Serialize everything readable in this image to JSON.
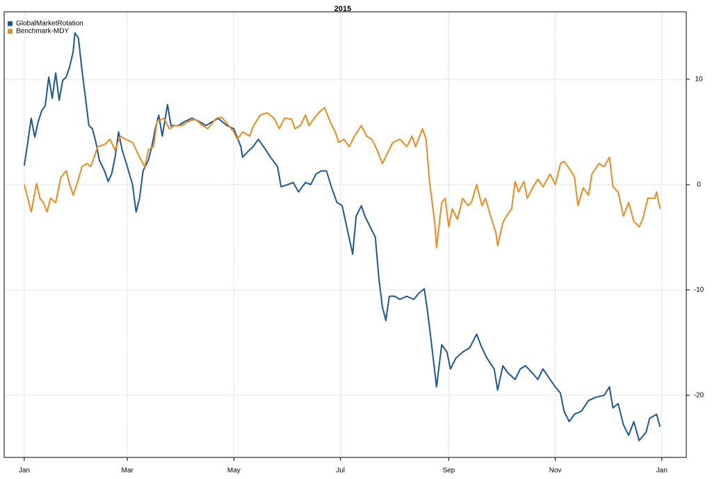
{
  "chart_data": {
    "type": "line",
    "title": "2015",
    "xlim": [
      -11.5,
      379
    ],
    "ylim": [
      -25.9,
      16.4
    ],
    "xticks": [
      {
        "value": 0,
        "label": "Jan"
      },
      {
        "value": 59,
        "label": "Mar"
      },
      {
        "value": 120,
        "label": "May"
      },
      {
        "value": 181,
        "label": "Jul"
      },
      {
        "value": 243,
        "label": "Sep"
      },
      {
        "value": 304,
        "label": "Nov"
      },
      {
        "value": 365,
        "label": "Jan"
      }
    ],
    "yticks": [
      -20,
      -10,
      0,
      10
    ],
    "grid": true,
    "legend": "topleft",
    "series": [
      {
        "name": "GlobalMarketRotation",
        "color": "#1b5796",
        "x": [
          0,
          2,
          4,
          6,
          8,
          10,
          12,
          14,
          16,
          18,
          20,
          22,
          24,
          26,
          28,
          29,
          31,
          33,
          35,
          37,
          39,
          41,
          43,
          46,
          48,
          50,
          52,
          54,
          56,
          59,
          62,
          64,
          66,
          68,
          71,
          73,
          75,
          77,
          79,
          82,
          84,
          88,
          92,
          96,
          100,
          104,
          108,
          111,
          116,
          120,
          124,
          125,
          129,
          131,
          134,
          137,
          141,
          145,
          147,
          151,
          154,
          157,
          161,
          164,
          167,
          170,
          173,
          176,
          179,
          182,
          185,
          188,
          190,
          193,
          195,
          198,
          201,
          203,
          205,
          207,
          209,
          212,
          215,
          219,
          223,
          226,
          229,
          231,
          233,
          236,
          239,
          242,
          244,
          247,
          251,
          255,
          259,
          262,
          265,
          269,
          271,
          274,
          277,
          281,
          284,
          287,
          291,
          294,
          297,
          301,
          304,
          307,
          309,
          312,
          315,
          319,
          323,
          327,
          332,
          335,
          337,
          340,
          343,
          346,
          349,
          352,
          356,
          358,
          362,
          364
        ],
        "values": [
          1.8,
          4,
          6.3,
          4.5,
          6,
          7,
          7.5,
          10.2,
          8.2,
          10.6,
          8,
          9.9,
          10.2,
          11.2,
          12.6,
          14.4,
          13.9,
          10.9,
          8.3,
          5.6,
          5.3,
          4,
          2.3,
          1.3,
          0.3,
          1,
          2.6,
          5,
          3.3,
          1.7,
          0,
          -2.6,
          -1.3,
          1.3,
          2.3,
          3.6,
          5.3,
          6.6,
          4.6,
          7.6,
          5.6,
          5.6,
          6,
          6.3,
          6,
          5.6,
          6,
          6.3,
          5.6,
          5.3,
          3.6,
          2.6,
          3.3,
          3.6,
          4.3,
          3.6,
          2.6,
          1.7,
          -0.2,
          0,
          0.2,
          -0.7,
          0.2,
          0,
          1,
          1.3,
          1.3,
          -0.3,
          -1.7,
          -2,
          -4.3,
          -6.6,
          -3,
          -2,
          -3,
          -4,
          -5,
          -8.9,
          -11.6,
          -12.9,
          -10.6,
          -10.6,
          -10.9,
          -10.6,
          -10.9,
          -10.3,
          -9.9,
          -12.2,
          -14.9,
          -19.2,
          -15.2,
          -15.9,
          -17.5,
          -16.5,
          -15.9,
          -15.5,
          -14.2,
          -15.5,
          -16.5,
          -17.5,
          -19.5,
          -17.2,
          -17.9,
          -18.5,
          -17.5,
          -17.2,
          -17.9,
          -18.5,
          -17.5,
          -18.5,
          -19.2,
          -19.8,
          -21.5,
          -22.5,
          -21.8,
          -21.5,
          -20.5,
          -20.2,
          -20,
          -19.2,
          -21.2,
          -20.8,
          -22.8,
          -23.8,
          -22.5,
          -24.3,
          -23.5,
          -22.2,
          -21.8,
          -23
        ]
      },
      {
        "name": "Benchmark-MDY",
        "color": "#ec8a1c",
        "x": [
          0,
          2,
          4,
          7,
          9,
          11,
          13,
          15,
          18,
          21,
          24,
          26,
          28,
          31,
          33,
          36,
          38,
          40,
          42,
          46,
          49,
          52,
          55,
          58,
          62,
          66,
          69,
          71,
          74,
          76,
          80,
          83,
          86,
          90,
          94,
          98,
          102,
          105,
          110,
          113,
          117,
          120,
          122,
          125,
          129,
          131,
          135,
          139,
          143,
          146,
          149,
          153,
          155,
          158,
          161,
          163,
          166,
          169,
          172,
          175,
          178,
          180,
          183,
          186,
          189,
          193,
          196,
          199,
          202,
          205,
          208,
          211,
          215,
          219,
          222,
          224,
          228,
          230,
          232,
          235,
          236,
          239,
          241,
          243,
          245,
          248,
          251,
          254,
          256,
          259,
          262,
          264,
          267,
          270,
          271,
          274,
          276,
          279,
          281,
          283,
          286,
          288,
          291,
          294,
          297,
          301,
          304,
          307,
          309,
          313,
          315,
          317,
          320,
          323,
          325,
          329,
          332,
          335,
          337,
          340,
          343,
          346,
          349,
          352,
          354,
          357,
          361,
          362,
          364
        ],
        "values": [
          0,
          -1.3,
          -2.6,
          0.1,
          -1.3,
          -1.7,
          -2.6,
          -1.3,
          -1.7,
          0.7,
          1.3,
          0,
          -1,
          0.5,
          1.7,
          2,
          1.7,
          2.6,
          3.6,
          3.8,
          4.3,
          3.3,
          4.6,
          4.3,
          4,
          2.6,
          1.7,
          3.3,
          3.6,
          6,
          6.3,
          5.3,
          5.6,
          5.6,
          6,
          6.2,
          5.6,
          5.3,
          6.3,
          6.4,
          5.6,
          5,
          4.3,
          5,
          4.6,
          5.5,
          6.6,
          6.8,
          6.3,
          5.3,
          6.3,
          6.2,
          5.3,
          5.6,
          6.6,
          5.6,
          6.3,
          6.9,
          7.3,
          6,
          5,
          4,
          4.3,
          3.6,
          4.6,
          5.6,
          4.6,
          4.3,
          3.3,
          2,
          3,
          4,
          4.3,
          3.6,
          4.6,
          3.6,
          5.3,
          4.3,
          0.3,
          -3.6,
          -6,
          -1.7,
          -1.3,
          -4,
          -2.3,
          -3.3,
          -1.3,
          -2,
          -1.7,
          0,
          -2,
          -1.3,
          -3,
          -4.6,
          -5.8,
          -3.6,
          -3,
          -2.3,
          0.3,
          -0.7,
          0.3,
          -1.3,
          -0.3,
          0.5,
          -0.2,
          1,
          0,
          2,
          2.2,
          1.3,
          0.7,
          -2,
          -0.3,
          -1,
          1,
          2,
          1.7,
          2.6,
          -0.2,
          -0.7,
          -3,
          -1.7,
          -3.5,
          -4,
          -3.3,
          -1.3,
          -1.3,
          -0.7,
          -2.3
        ]
      }
    ]
  }
}
